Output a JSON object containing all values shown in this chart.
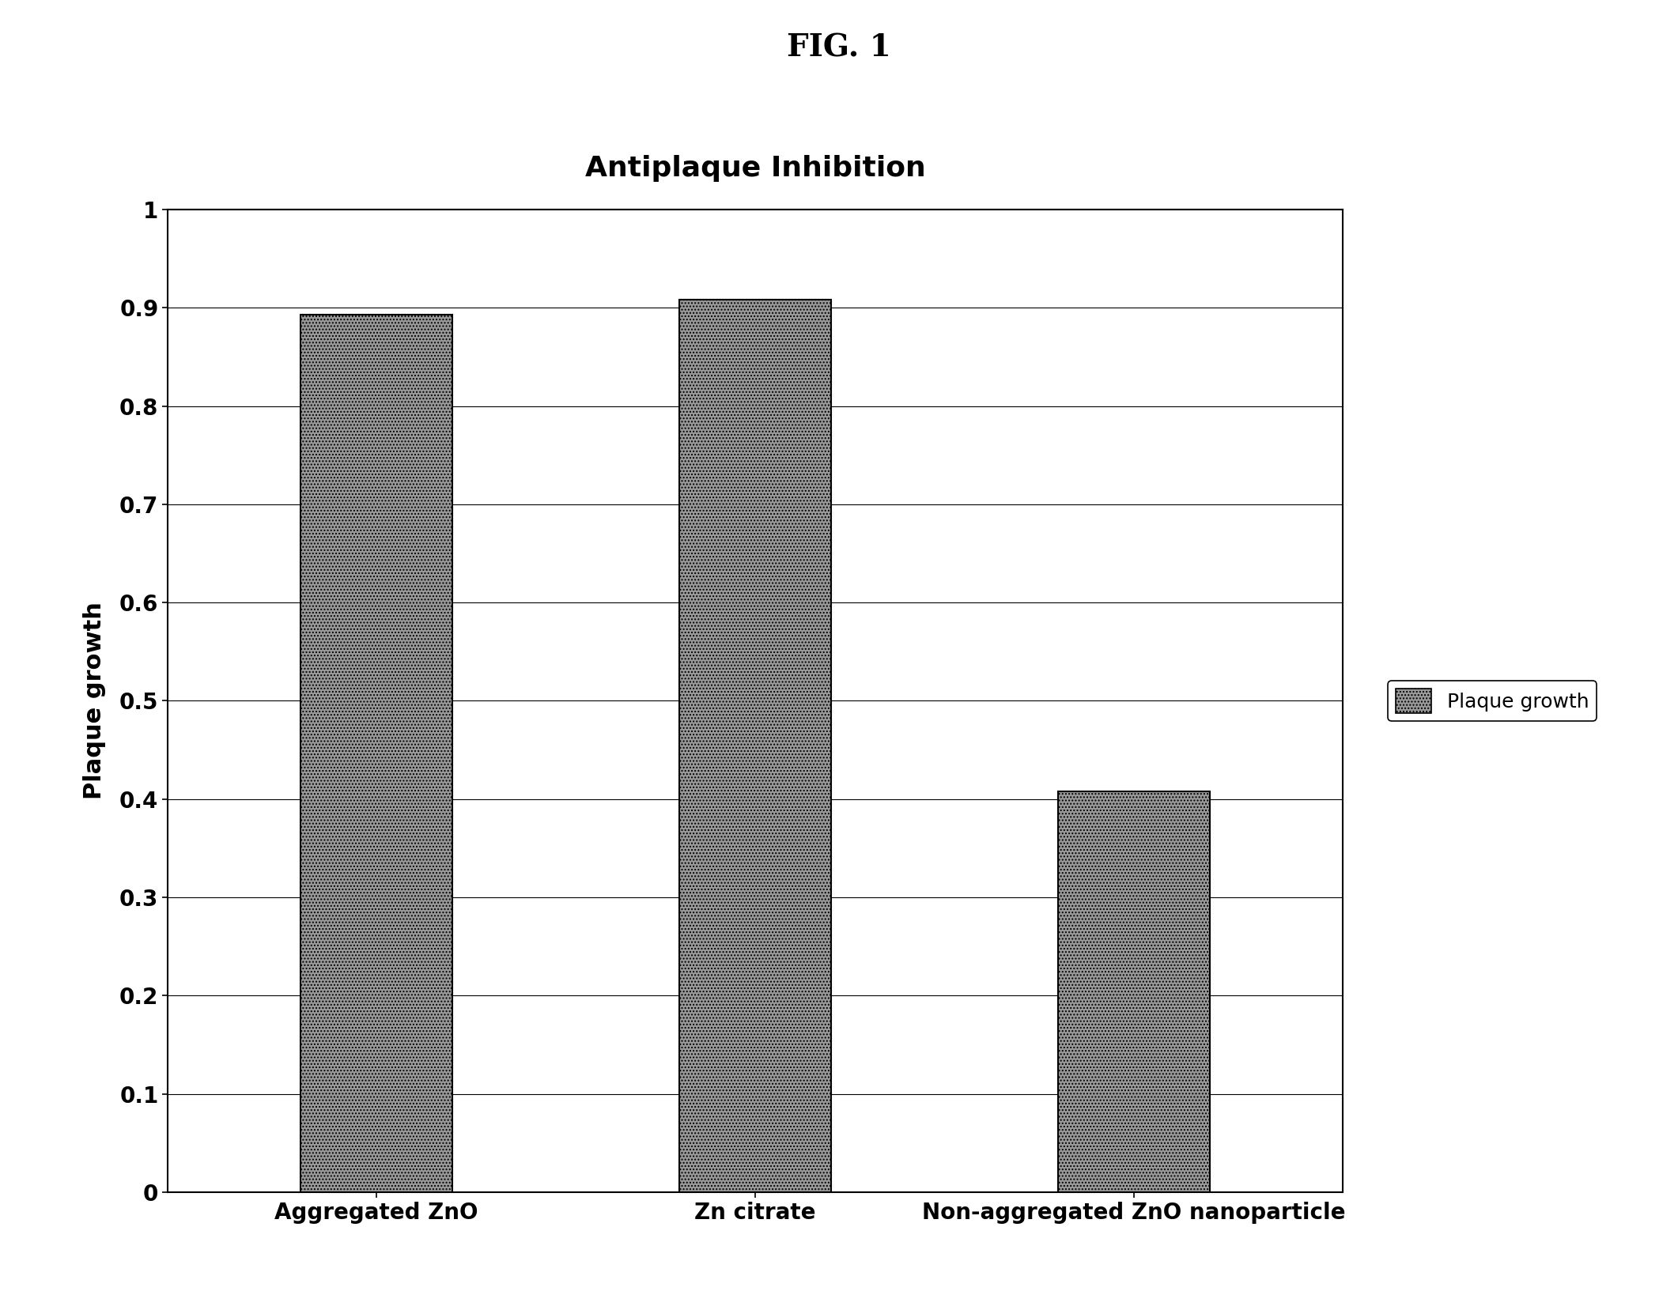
{
  "title_fig": "FIG. 1",
  "title_chart": "Antiplaque Inhibition",
  "categories": [
    "Aggregated ZnO",
    "Zn citrate",
    "Non-aggregated ZnO nanoparticle"
  ],
  "values": [
    0.893,
    0.908,
    0.408
  ],
  "ylabel": "Plaque growth",
  "ylim": [
    0,
    1.0
  ],
  "yticks": [
    0,
    0.1,
    0.2,
    0.3,
    0.4,
    0.5,
    0.6,
    0.7,
    0.8,
    0.9,
    1
  ],
  "ytick_labels": [
    "0",
    "0.1",
    "0.2",
    "0.3",
    "0.4",
    "0.5",
    "0.6",
    "0.7",
    "0.8",
    "0.9",
    "1"
  ],
  "legend_label": "Plaque growth",
  "bar_facecolor": "#999999",
  "bar_edgecolor": "#000000",
  "background_color": "#ffffff",
  "fig_width": 21.22,
  "fig_height": 16.57,
  "title_fig_fontsize": 28,
  "title_chart_fontsize": 26,
  "axis_label_fontsize": 22,
  "tick_fontsize": 20,
  "legend_fontsize": 18,
  "bar_width": 0.4
}
